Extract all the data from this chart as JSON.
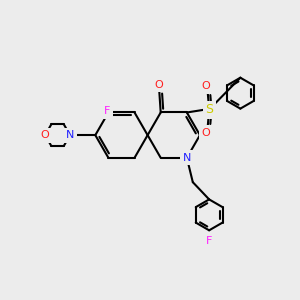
{
  "background_color": "#ececec",
  "bond_color": "#000000",
  "atom_colors": {
    "N": "#2020ff",
    "O": "#ff2020",
    "F": "#ff20ff",
    "S": "#cccc00",
    "C": "#000000"
  },
  "figsize": [
    3.0,
    3.0
  ],
  "dpi": 100
}
